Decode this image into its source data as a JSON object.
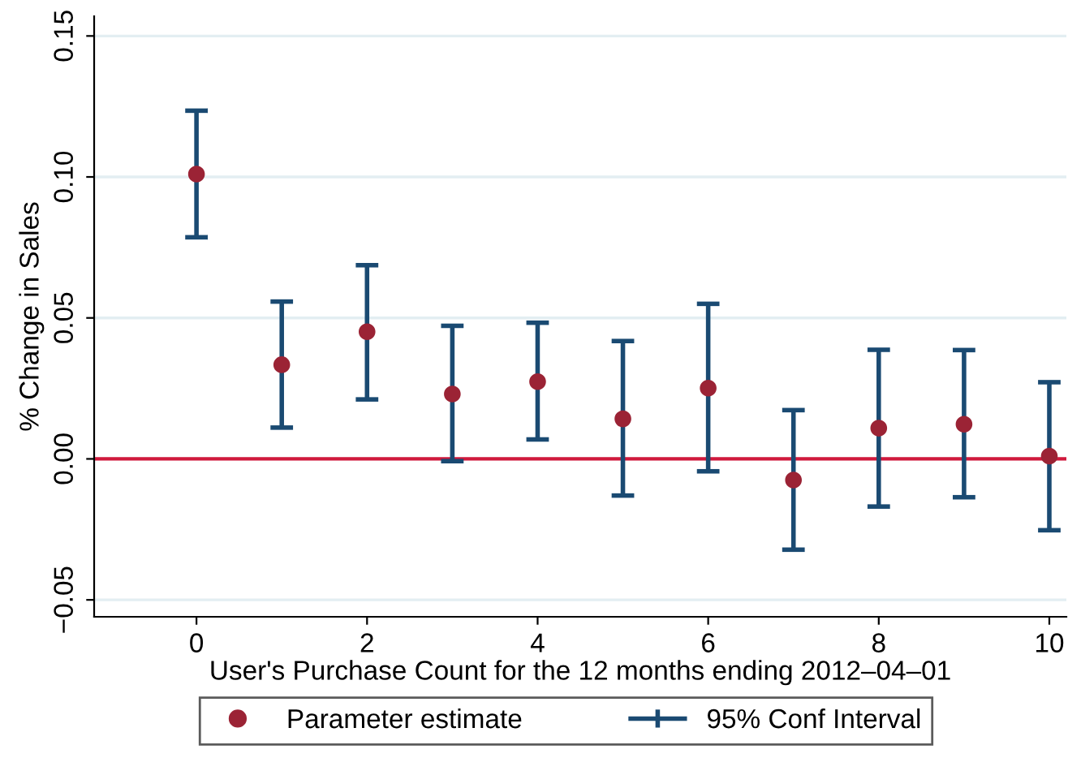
{
  "chart_data": {
    "type": "scatter",
    "xlabel": "User's Purchase Count for the 12 months ending 2012–04–01",
    "ylabel": "% Change in Sales",
    "x": [
      0,
      1,
      2,
      3,
      4,
      5,
      6,
      7,
      8,
      9,
      10
    ],
    "series": [
      {
        "name": "Parameter estimate",
        "color": "#9b2335",
        "values": [
          0.101,
          0.0334,
          0.0451,
          0.023,
          0.0274,
          0.0142,
          0.0251,
          -0.0075,
          0.0109,
          0.0123,
          0.001
        ],
        "errors": [
          [
            0.0786,
            0.1235
          ],
          [
            0.0111,
            0.0558
          ],
          [
            0.0211,
            0.0687
          ],
          [
            -0.0008,
            0.0472
          ],
          [
            0.0069,
            0.0483
          ],
          [
            -0.013,
            0.0418
          ],
          [
            -0.0044,
            0.055
          ],
          [
            -0.0322,
            0.0173
          ],
          [
            -0.0169,
            0.0387
          ],
          [
            -0.0136,
            0.0386
          ],
          [
            -0.0253,
            0.0272
          ]
        ]
      }
    ],
    "annotations": [
      "95% Conf Interval"
    ],
    "xlim": [
      -1.2,
      10.2
    ],
    "ylim": [
      -0.056,
      0.157
    ],
    "xticks": [
      0,
      2,
      4,
      6,
      8,
      10
    ],
    "yticks": [
      {
        "value": -0.05,
        "label": "−0.05"
      },
      {
        "value": 0,
        "label": "0.00"
      },
      {
        "value": 0.05,
        "label": "0.05"
      },
      {
        "value": 0.1,
        "label": "0.10"
      },
      {
        "value": 0.15,
        "label": "0.15"
      }
    ],
    "ref_lines": [
      {
        "axis": "y",
        "value": 0,
        "color": "#d0193c"
      }
    ],
    "grid": "y",
    "legend": "bottom",
    "marker": "circle"
  }
}
